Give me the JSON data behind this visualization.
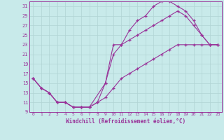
{
  "xlabel": "Windchill (Refroidissement éolien,°C)",
  "bg_color": "#c8eaea",
  "grid_color": "#aacccc",
  "line_color": "#993399",
  "xlim": [
    -0.5,
    23.5
  ],
  "ylim": [
    9,
    32
  ],
  "xticks": [
    0,
    1,
    2,
    3,
    4,
    5,
    6,
    7,
    8,
    9,
    10,
    11,
    12,
    13,
    14,
    15,
    16,
    17,
    18,
    19,
    20,
    21,
    22,
    23
  ],
  "yticks": [
    9,
    11,
    13,
    15,
    17,
    19,
    21,
    23,
    25,
    27,
    29,
    31
  ],
  "series1_x": [
    0,
    1,
    2,
    3,
    4,
    5,
    6,
    7,
    9,
    10,
    11,
    12,
    13,
    14,
    15,
    16,
    17,
    18,
    19,
    20,
    21,
    22,
    23
  ],
  "series1_y": [
    16,
    14,
    13,
    11,
    11,
    10,
    10,
    10,
    15,
    21,
    23,
    26,
    28,
    29,
    31,
    32,
    32,
    31,
    30,
    28,
    25,
    23,
    23
  ],
  "series2_x": [
    0,
    1,
    2,
    3,
    4,
    5,
    6,
    7,
    8,
    9,
    10,
    11,
    12,
    13,
    14,
    15,
    16,
    17,
    18,
    19,
    20,
    21,
    22,
    23
  ],
  "series2_y": [
    16,
    14,
    13,
    11,
    11,
    10,
    10,
    10,
    11,
    15,
    23,
    23,
    24,
    25,
    26,
    27,
    28,
    29,
    30,
    29,
    27,
    25,
    23,
    23
  ],
  "series3_x": [
    0,
    1,
    2,
    3,
    4,
    5,
    6,
    7,
    8,
    9,
    10,
    11,
    12,
    13,
    14,
    15,
    16,
    17,
    18,
    19,
    20,
    21,
    22,
    23
  ],
  "series3_y": [
    16,
    14,
    13,
    11,
    11,
    10,
    10,
    10,
    11,
    12,
    14,
    16,
    17,
    18,
    19,
    20,
    21,
    22,
    23,
    23,
    23,
    23,
    23,
    23
  ]
}
